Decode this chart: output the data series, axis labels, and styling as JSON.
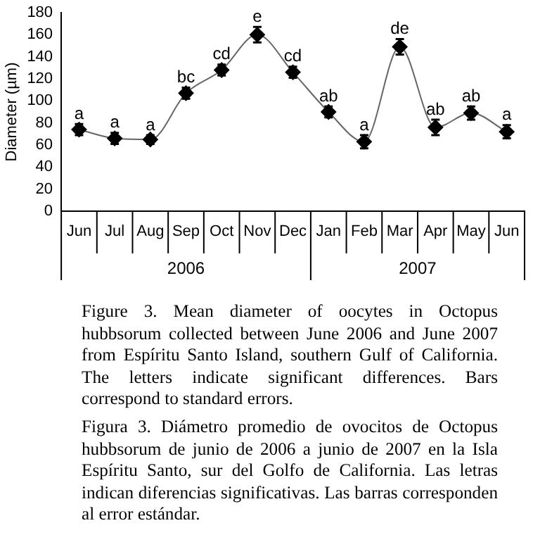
{
  "chart_data": {
    "type": "line",
    "ylabel": "Diameter (µm)",
    "categories": [
      "Jun",
      "Jul",
      "Aug",
      "Sep",
      "Oct",
      "Nov",
      "Dec",
      "Jan",
      "Feb",
      "Mar",
      "Apr",
      "May",
      "Jun"
    ],
    "series": [
      {
        "color": "#000000",
        "values": [
          74,
          66,
          65,
          107,
          128,
          160,
          126,
          90,
          63,
          149,
          76,
          89,
          72
        ],
        "errors": [
          5,
          5,
          4,
          5,
          5,
          7,
          5,
          5,
          6,
          7,
          7,
          6,
          6
        ],
        "value_labels": [
          "a",
          "a",
          "a",
          "bc",
          "cd",
          "e",
          "cd",
          "ab",
          "a",
          "de",
          "ab",
          "ab",
          "a"
        ]
      }
    ],
    "ylim": [
      0,
      180
    ],
    "yticks": [
      0,
      20,
      40,
      60,
      80,
      100,
      120,
      140,
      160,
      180
    ],
    "grid": false,
    "legend": false,
    "marker": "diamond",
    "line_style": "solid",
    "annotations": [
      "2006",
      "2007",
      "Figure 3. Mean diameter of oocytes in Octopus hubbsorum collected between June 2006 and June 2007 from Espíritu Santo Island, southern Gulf of California. The letters indicate significant differences. Bars correspond to standard errors.",
      "Figura 3. Diámetro promedio de ovocitos de Octopus hubbsorum de junio de 2006 a junio de 2007 en la Isla Espíritu Santo, sur del Golfo de California. Las letras indican diferencias significativas. Las barras corresponden al error estándar."
    ]
  }
}
